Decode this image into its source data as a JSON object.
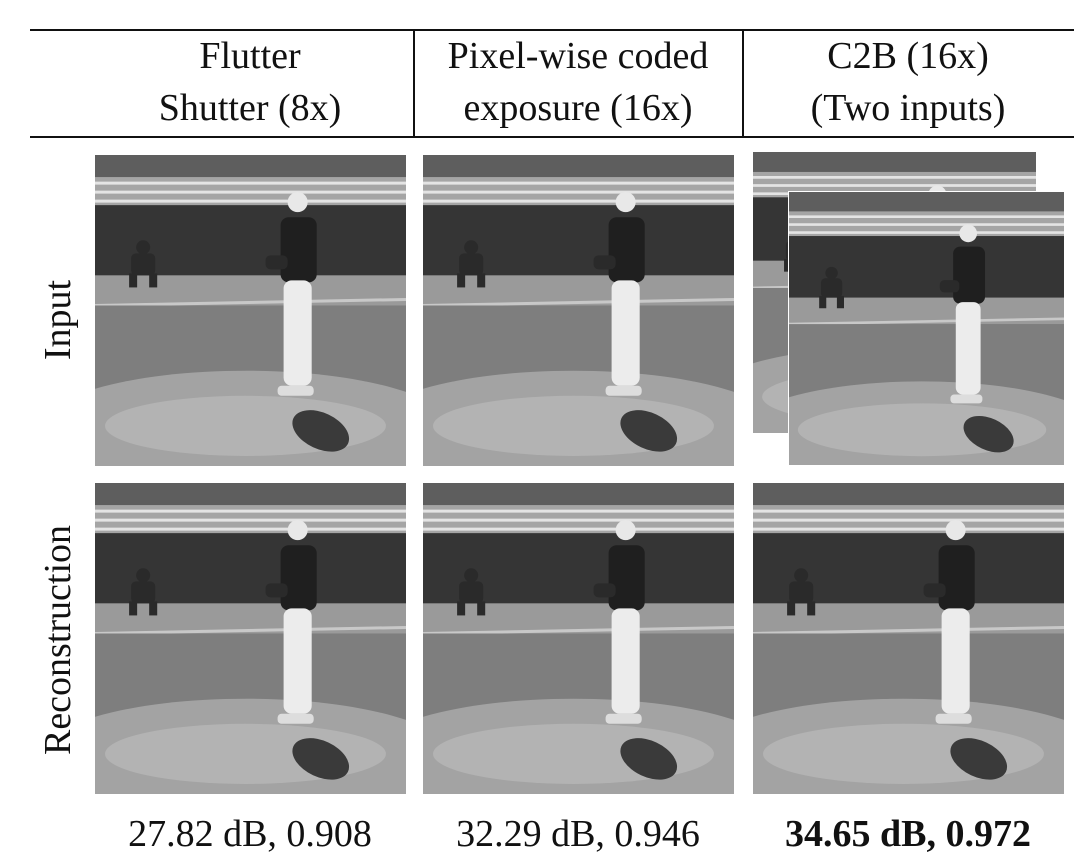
{
  "header": {
    "columns": [
      {
        "lines": [
          "Flutter",
          "Shutter (8x)"
        ]
      },
      {
        "lines": [
          "Pixel-wise coded",
          "exposure (16x)"
        ]
      },
      {
        "lines": [
          "C2B (16x)",
          "(Two inputs)"
        ]
      }
    ]
  },
  "rows": [
    {
      "label": "Input"
    },
    {
      "label": "Reconstruction"
    }
  ],
  "metrics": [
    "27.82 dB, 0.908",
    "32.29 dB, 0.946",
    "34.65 dB, 0.972"
  ]
}
